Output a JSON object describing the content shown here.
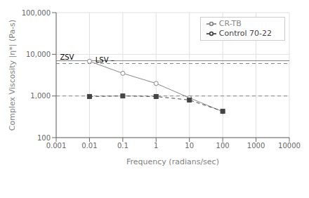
{
  "chart_data": {
    "type": "line",
    "xlabel": "Frequency (radians/sec)",
    "ylabel": "Complex Viscosity |η*| (Pa-s)",
    "x": [
      0.01,
      0.1,
      1.0,
      10.0,
      100.0
    ],
    "series": [
      {
        "name": "CR-TB",
        "color": "#888888",
        "values": [
          6800,
          3500,
          2000,
          900,
          420
        ],
        "marker": "circle",
        "line_style": "solid"
      },
      {
        "name": "Control 70-22",
        "color": "#444444",
        "values": [
          970,
          1000,
          970,
          800,
          430
        ],
        "marker": "square",
        "line_style": "dashed"
      }
    ],
    "reference_lines": [
      {
        "y": 7000,
        "color": "#888888",
        "line_style": "solid"
      },
      {
        "y": 6000,
        "color": "#888888",
        "line_style": "dashed"
      },
      {
        "y": 1000,
        "color": "#888888",
        "line_style": "dashed"
      }
    ],
    "annotations": [
      {
        "text": "ZSV",
        "x": 0.0013,
        "y": 7140
      },
      {
        "text": "LSV –",
        "x": 0.015,
        "y": 6120
      }
    ],
    "xlim": [
      0.001,
      10000
    ],
    "ylim": [
      100,
      100000
    ],
    "xticks": [
      0.001,
      0.01,
      0.1,
      1,
      10,
      100,
      1000,
      10000
    ],
    "yticks": [
      100,
      {
        "value": 1000,
        "label": "1,000"
      },
      {
        "value": 10000,
        "label": "10,000"
      },
      {
        "value": 100000,
        "label": "100,000"
      }
    ],
    "log": true,
    "grid": true,
    "legend": "upper right"
  }
}
